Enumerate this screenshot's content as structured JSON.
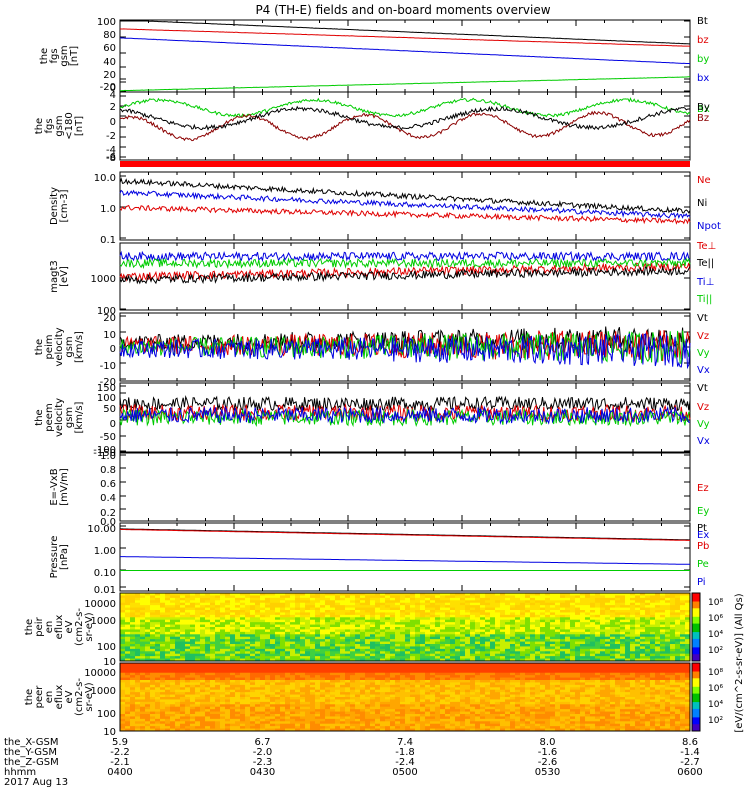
{
  "title": "P4 (TH-E) fields and on-board moments overview",
  "date_label": "2017 Aug 13",
  "colors": {
    "black": "#000000",
    "red": "#e00000",
    "green": "#00cc00",
    "blue": "#0000e0",
    "thick_red": "#ff0000"
  },
  "chart_data": [
    {
      "type": "line",
      "id": "fgs_gsm",
      "ylabel": [
        "the",
        "fgs",
        "gsm",
        "[nT]"
      ],
      "yticks": [
        "100",
        "80",
        "60",
        "40",
        "20",
        "0",
        "-20"
      ],
      "ylim": [
        -20,
        100
      ],
      "series": [
        {
          "name": "Bt",
          "color": "#000000",
          "start": 100,
          "end": 60
        },
        {
          "name": "bz",
          "color": "#e00000",
          "start": 85,
          "end": 56
        },
        {
          "name": "by",
          "color": "#00cc00",
          "start": -18,
          "end": 5
        },
        {
          "name": "bx",
          "color": "#0000e0",
          "start": 70,
          "end": 27
        }
      ]
    },
    {
      "type": "line",
      "id": "fgs_gsm_hp",
      "ylabel": [
        "the",
        "fgs",
        "gsm",
        "<180",
        "[nT]"
      ],
      "yticks": [
        "4",
        "2",
        "0",
        "-2",
        "-4",
        "-6",
        "-8"
      ],
      "ylim": [
        -9,
        4
      ],
      "series": [
        {
          "name": "Bx",
          "color": "#00cc00",
          "start": 1,
          "end": 1
        },
        {
          "name": "Bz",
          "color": "#8b0000",
          "start": -3,
          "end": -2
        },
        {
          "name": "By",
          "color": "#000000",
          "start": -1,
          "end": -1
        }
      ],
      "band_color": "#ff0000"
    },
    {
      "type": "line",
      "id": "density",
      "ylabel": [
        "Density",
        "[cm-3]"
      ],
      "yticks": [
        "10.0",
        "1.0",
        "0.1"
      ],
      "log": true,
      "ylim": [
        0.1,
        10
      ],
      "series": [
        {
          "name": "Ne",
          "color": "#e00000",
          "start": 0.9,
          "end": 0.35
        },
        {
          "name": "Ni",
          "color": "#000000",
          "start": 5.5,
          "end": 0.7
        },
        {
          "name": "Npot",
          "color": "#0000e0",
          "start": 2.5,
          "end": 0.5
        }
      ]
    },
    {
      "type": "line",
      "id": "temperature",
      "ylabel": [
        "magt3",
        "[eV]"
      ],
      "yticks": [
        "1000",
        "100"
      ],
      "log": true,
      "ylim": [
        100,
        10000
      ],
      "series": [
        {
          "name": "Te⊥",
          "color": "#e00000",
          "start": 1000,
          "end": 2000
        },
        {
          "name": "Te||",
          "color": "#000000",
          "start": 800,
          "end": 1500
        },
        {
          "name": "Ti⊥",
          "color": "#0000e0",
          "start": 4000,
          "end": 4000
        },
        {
          "name": "Ti||",
          "color": "#00cc00",
          "start": 2500,
          "end": 2500
        }
      ]
    },
    {
      "type": "line",
      "id": "peim_velocity",
      "ylabel": [
        "the",
        "peim",
        "velocity",
        "gsm",
        "[km/s]"
      ],
      "yticks": [
        "20",
        "10",
        "0",
        "-10",
        "-20"
      ],
      "ylim": [
        -20,
        20
      ],
      "series": [
        {
          "name": "Vt",
          "color": "#000000",
          "start": 3,
          "end": 5
        },
        {
          "name": "Vz",
          "color": "#e00000",
          "start": 1,
          "end": 1
        },
        {
          "name": "Vy",
          "color": "#00cc00",
          "start": 0,
          "end": 0
        },
        {
          "name": "Vx",
          "color": "#0000e0",
          "start": -1,
          "end": -2
        }
      ]
    },
    {
      "type": "line",
      "id": "peem_velocity",
      "ylabel": [
        "the",
        "peem",
        "velocity",
        "gsm",
        "[km/s]"
      ],
      "yticks": [
        "150",
        "100",
        "50",
        "0",
        "-50",
        "-100",
        "-150"
      ],
      "ylim": [
        -150,
        150
      ],
      "series": [
        {
          "name": "Vt",
          "color": "#000000",
          "start": 60,
          "end": 60
        },
        {
          "name": "Vz",
          "color": "#e00000",
          "start": 20,
          "end": 20
        },
        {
          "name": "Vy",
          "color": "#00cc00",
          "start": 0,
          "end": 0
        },
        {
          "name": "Vx",
          "color": "#0000e0",
          "start": 10,
          "end": 10
        }
      ]
    },
    {
      "type": "line",
      "id": "efield",
      "ylabel": [
        "E=-VxB",
        "[mV/m]"
      ],
      "yticks": [
        "1.0",
        "0.8",
        "0.6",
        "0.4",
        "0.2",
        "0.0"
      ],
      "ylim": [
        0,
        1
      ],
      "series": [
        {
          "name": "Ez",
          "color": "#e00000"
        },
        {
          "name": "Ey",
          "color": "#00cc00"
        },
        {
          "name": "Ex",
          "color": "#0000e0"
        }
      ]
    },
    {
      "type": "line",
      "id": "pressure",
      "ylabel": [
        "Pressure",
        "[nPa]"
      ],
      "yticks": [
        "10.00",
        "1.00",
        "0.10",
        "0.01"
      ],
      "log": true,
      "ylim": [
        0.01,
        10
      ],
      "series": [
        {
          "name": "Pt",
          "color": "#000000",
          "start": 5.5,
          "end": 1.8
        },
        {
          "name": "Pb",
          "color": "#e00000",
          "start": 5.2,
          "end": 1.7
        },
        {
          "name": "Pe",
          "color": "#00cc00",
          "start": 0.08,
          "end": 0.08
        },
        {
          "name": "Pi",
          "color": "#0000e0",
          "start": 0.33,
          "end": 0.15
        }
      ]
    },
    {
      "type": "heatmap",
      "id": "peir_en_eflux",
      "ylabel": [
        "the",
        "peir",
        "en",
        "eflux",
        "eV",
        "(cm2-s-",
        "sr-eV)"
      ],
      "yticks": [
        "10000",
        "1000",
        "100",
        "10"
      ],
      "log": true,
      "ylim": [
        7,
        30000
      ]
    },
    {
      "type": "heatmap",
      "id": "peer_en_eflux",
      "ylabel": [
        "the",
        "peer",
        "en",
        "eflux",
        "eV",
        "(cm2-s-",
        "sr-eV)"
      ],
      "yticks": [
        "10000",
        "1000",
        "100",
        "10"
      ],
      "log": true,
      "ylim": [
        7,
        30000
      ]
    }
  ],
  "colorbar": {
    "label": "[eV/(cm^2-s-sr-eV)] (All Qs)",
    "ticks": [
      "10⁸",
      "10⁶",
      "10⁴",
      "10²"
    ]
  },
  "xaxis": {
    "row_labels": [
      "the_X-GSM",
      "the_Y-GSM",
      "the_Z-GSM",
      "hhmm"
    ],
    "columns": [
      [
        "5.9",
        "-2.2",
        "-2.1",
        "0400"
      ],
      [
        "6.7",
        "-2.0",
        "-2.3",
        "0430"
      ],
      [
        "7.4",
        "-1.8",
        "-2.4",
        "0500"
      ],
      [
        "8.0",
        "-1.6",
        "-2.6",
        "0530"
      ],
      [
        "8.6",
        "-1.4",
        "-2.7",
        "0600"
      ]
    ]
  }
}
